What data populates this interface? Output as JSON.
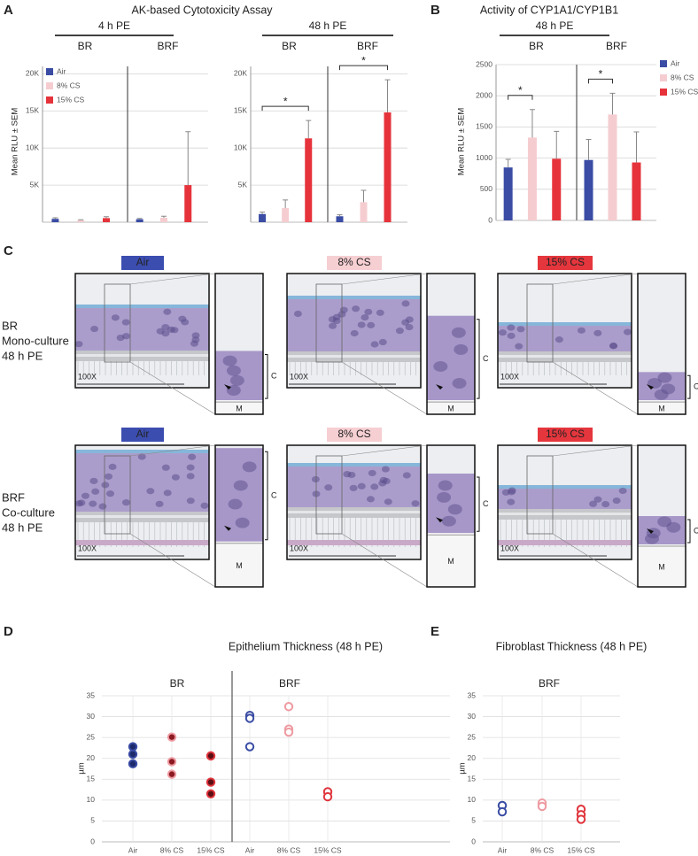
{
  "chart_data": [
    {
      "panel": "A",
      "type": "bar",
      "title": "AK-based Cytotoxicity Assay",
      "y_label": "Mean RLU ± SEM",
      "legend": "top-left",
      "series": [
        {
          "name": "Air",
          "color": "#3a4ca4"
        },
        {
          "name": "8% CS",
          "color": "#f5cdd0"
        },
        {
          "name": "15% CS",
          "color": "#e6333b"
        }
      ],
      "ylim": [
        0,
        21000
      ],
      "yticks": [
        {
          "value": 5000,
          "label": "5K"
        },
        {
          "value": 10000,
          "label": "10K"
        },
        {
          "value": 15000,
          "label": "15K"
        },
        {
          "value": 20000,
          "label": "20K"
        }
      ],
      "grid": true,
      "groups": [
        {
          "label": "4 h PE",
          "facets": [
            {
              "label": "BR",
              "values": [
                450,
                250,
                550
              ],
              "errors": [
                150,
                80,
                200
              ]
            },
            {
              "label": "BRF",
              "values": [
                400,
                600,
                5000
              ],
              "errors": [
                100,
                200,
                7200
              ]
            }
          ]
        },
        {
          "label": "48 h PE",
          "facets": [
            {
              "label": "BR",
              "values": [
                1100,
                1900,
                11300
              ],
              "errors": [
                250,
                1100,
                2400
              ],
              "brackets": [
                {
                  "from": 0,
                  "to": 2,
                  "label": "*"
                }
              ]
            },
            {
              "label": "BRF",
              "values": [
                800,
                2700,
                14800
              ],
              "errors": [
                200,
                1600,
                4400
              ],
              "brackets": [
                {
                  "from": 0,
                  "to": 2,
                  "label": "*"
                }
              ]
            }
          ]
        }
      ]
    },
    {
      "panel": "B",
      "type": "bar",
      "title": "Activity of CYP1A1/CYP1B1",
      "y_label": "Mean RLU ± SEM",
      "legend": "right",
      "series": [
        {
          "name": "Air",
          "color": "#3a4ca4"
        },
        {
          "name": "8% CS",
          "color": "#f5cdd0"
        },
        {
          "name": "15% CS",
          "color": "#e6333b"
        }
      ],
      "ylim": [
        0,
        2500
      ],
      "yticks": [
        0,
        500,
        1000,
        1500,
        2000,
        2500
      ],
      "grid": true,
      "groups": [
        {
          "label": "48 h PE",
          "facets": [
            {
              "label": "BR",
              "values": [
                850,
                1330,
                990
              ],
              "errors": [
                130,
                450,
                440
              ],
              "brackets": [
                {
                  "from": 0,
                  "to": 1,
                  "label": "*"
                }
              ]
            },
            {
              "label": "BRF",
              "values": [
                970,
                1700,
                930
              ],
              "errors": [
                330,
                340,
                490
              ],
              "brackets": [
                {
                  "from": 0,
                  "to": 1,
                  "label": "*"
                }
              ]
            }
          ]
        }
      ]
    },
    {
      "panel": "D",
      "type": "scatter",
      "title": "Epithelium Thickness (48 h PE)",
      "y_label": "µm",
      "categories": [
        "Air",
        "8% CS",
        "15% CS"
      ],
      "colors": [
        "#3a4ca4",
        "#ee9aa1",
        "#e0343c"
      ],
      "fill_colors": [
        "#1d2a6b",
        "#8b1a22",
        "#5a0f14"
      ],
      "ylim": [
        0,
        35
      ],
      "yticks": [
        0,
        5,
        10,
        15,
        20,
        25,
        30,
        35
      ],
      "grid": true,
      "facets": [
        {
          "label": "BR",
          "marker": "filled",
          "values": [
            [
              22.8,
              21,
              18.7
            ],
            [
              25.1,
              19.2,
              16.2
            ],
            [
              20.6,
              14.3,
              11.5
            ]
          ]
        },
        {
          "label": "BRF",
          "marker": "open",
          "values": [
            [
              30.3,
              29.6,
              22.8
            ],
            [
              32.4,
              27,
              26.3
            ],
            [
              12,
              10.8
            ]
          ]
        }
      ]
    },
    {
      "panel": "E",
      "type": "scatter",
      "title": "Fibroblast Thickness (48 h PE)",
      "y_label": "µm",
      "categories": [
        "Air",
        "8% CS",
        "15% CS"
      ],
      "colors": [
        "#3a4ca4",
        "#ee9aa1",
        "#e0343c"
      ],
      "ylim": [
        0,
        35
      ],
      "yticks": [
        0,
        5,
        10,
        15,
        20,
        25,
        30,
        35
      ],
      "grid": true,
      "facets": [
        {
          "label": "BRF",
          "marker": "open",
          "values": [
            [
              8.7,
              7.2
            ],
            [
              9.3,
              8.5
            ],
            [
              7.8,
              6.5,
              5.4
            ]
          ]
        }
      ]
    }
  ],
  "histology": {
    "panel": "C",
    "columns": [
      {
        "label": "Air",
        "color": "#3c4db0",
        "text_color": "#ffffff"
      },
      {
        "label": "8% CS",
        "color": "#f6cfd2",
        "text_color": "#222222"
      },
      {
        "label": "15% CS",
        "color": "#e5363d",
        "text_color": "#ffffff"
      }
    ],
    "rows": [
      [
        "BR",
        "Mono-culture",
        "48 h PE"
      ],
      [
        "BRF",
        "Co-culture",
        "48 h PE"
      ]
    ],
    "magnification": "100X",
    "layer_labels": [
      "C",
      "M"
    ]
  }
}
